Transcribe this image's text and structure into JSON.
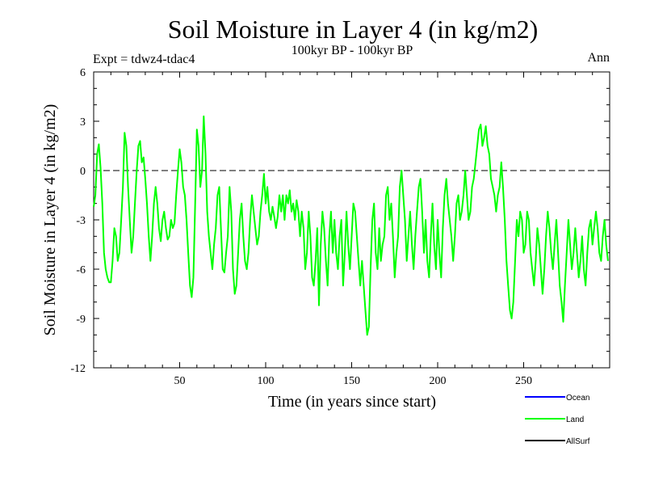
{
  "chart_data": {
    "type": "line",
    "title": "Soil Moisture in Layer 4 (in kg/m2)",
    "subtitle": "100kyr BP - 100kyr BP",
    "experiment_label": "Expt = tdwz4-tdac4",
    "season_label": "Ann",
    "xlabel": "Time (in years since start)",
    "ylabel": "Soil Moisture in Layer 4 (in kg/m2)",
    "xlim": [
      0,
      300
    ],
    "ylim": [
      -12,
      6
    ],
    "x_ticks": [
      50,
      100,
      150,
      200,
      250
    ],
    "y_ticks": [
      6,
      3,
      0,
      -3,
      -6,
      -9,
      -12
    ],
    "zero_line": true,
    "grid": false,
    "legend_position": "bottom-right",
    "legend": [
      {
        "name": "Ocean",
        "color": "#0000ff"
      },
      {
        "name": "Land",
        "color": "#00ff00"
      },
      {
        "name": "AllSurf",
        "color": "#000000"
      }
    ],
    "series": [
      {
        "name": "Land",
        "color": "#00ff00",
        "x_start": 0,
        "x_step": 1,
        "values": [
          -2.2,
          -1.5,
          1.0,
          1.6,
          0.2,
          -2.0,
          -5.0,
          -6.0,
          -6.5,
          -6.8,
          -6.8,
          -5.5,
          -3.5,
          -4.0,
          -5.5,
          -5.0,
          -3.0,
          -1.0,
          2.3,
          1.5,
          -1.0,
          -3.0,
          -5.0,
          -4.0,
          -2.0,
          0.0,
          1.5,
          1.8,
          0.5,
          0.8,
          -0.5,
          -2.0,
          -4.0,
          -5.5,
          -4.0,
          -2.0,
          -1.0,
          -2.0,
          -3.5,
          -4.3,
          -3.0,
          -2.5,
          -3.5,
          -4.2,
          -4.0,
          -3.0,
          -3.5,
          -3.2,
          -1.5,
          0.0,
          1.3,
          0.5,
          -1.0,
          -1.5,
          -3.0,
          -5.0,
          -7.0,
          -7.7,
          -6.5,
          -2.0,
          2.5,
          1.5,
          -1.0,
          0.0,
          3.3,
          1.0,
          -2.5,
          -4.0,
          -5.0,
          -6.0,
          -4.5,
          -3.5,
          -1.5,
          -1.0,
          -3.5,
          -6.0,
          -6.2,
          -5.0,
          -4.0,
          -1.0,
          -2.5,
          -6.0,
          -7.5,
          -7.0,
          -5.0,
          -3.0,
          -2.0,
          -4.0,
          -5.5,
          -6.0,
          -5.0,
          -3.0,
          -1.5,
          -2.5,
          -3.5,
          -4.5,
          -4.0,
          -2.5,
          -1.5,
          -0.2,
          -2.0,
          -1.0,
          -2.5,
          -3.0,
          -2.2,
          -2.8,
          -3.5,
          -2.8,
          -1.5,
          -2.5,
          -1.5,
          -3.0,
          -1.5,
          -2.0,
          -1.2,
          -2.5,
          -2.0,
          -3.0,
          -1.8,
          -2.5,
          -4.0,
          -2.5,
          -3.5,
          -6.0,
          -5.0,
          -2.5,
          -4.0,
          -6.5,
          -7.0,
          -5.5,
          -3.5,
          -8.2,
          -4.5,
          -2.5,
          -3.5,
          -5.5,
          -7.0,
          -4.0,
          -2.5,
          -5.0,
          -3.0,
          -5.0,
          -6.0,
          -4.0,
          -3.0,
          -7.0,
          -5.0,
          -2.5,
          -4.5,
          -6.0,
          -4.0,
          -2.0,
          -2.5,
          -4.0,
          -5.5,
          -7.0,
          -5.5,
          -7.0,
          -8.5,
          -10.0,
          -9.5,
          -6.0,
          -3.0,
          -2.0,
          -5.0,
          -6.0,
          -3.5,
          -5.5,
          -4.5,
          -4.0,
          -1.5,
          -1.0,
          -3.0,
          -2.0,
          -4.0,
          -6.5,
          -5.0,
          -4.0,
          -1.0,
          0.0,
          -1.5,
          -3.0,
          -5.5,
          -4.0,
          -2.5,
          -4.5,
          -6.0,
          -4.0,
          -2.5,
          -1.0,
          -0.5,
          -2.5,
          -5.0,
          -3.0,
          -5.5,
          -6.5,
          -4.0,
          -2.0,
          -4.5,
          -6.0,
          -3.0,
          -5.0,
          -6.5,
          -3.5,
          -1.5,
          -0.5,
          -2.0,
          -3.0,
          -4.0,
          -5.5,
          -4.0,
          -2.0,
          -1.5,
          -3.0,
          -2.5,
          -1.5,
          0.0,
          -1.5,
          -3.0,
          -2.5,
          -1.0,
          -0.5,
          0.5,
          1.5,
          2.5,
          2.8,
          1.5,
          2.0,
          2.7,
          1.5,
          1.0,
          -0.5,
          -1.0,
          -1.5,
          -2.5,
          -1.5,
          -1.0,
          0.5,
          -1.0,
          -3.0,
          -5.5,
          -7.0,
          -8.5,
          -9.0,
          -8.0,
          -5.5,
          -3.0,
          -4.0,
          -2.5,
          -3.0,
          -5.0,
          -4.5,
          -2.5,
          -3.0,
          -5.0,
          -6.0,
          -7.0,
          -5.5,
          -3.5,
          -4.5,
          -6.0,
          -7.5,
          -6.0,
          -4.0,
          -2.5,
          -3.5,
          -5.0,
          -6.0,
          -4.5,
          -3.0,
          -5.0,
          -7.0,
          -8.0,
          -9.2,
          -7.0,
          -5.0,
          -3.0,
          -4.5,
          -6.0,
          -5.0,
          -3.5,
          -5.0,
          -6.5,
          -5.5,
          -4.0,
          -6.0,
          -7.0,
          -5.0,
          -3.5,
          -3.0,
          -4.5,
          -3.5,
          -2.5,
          -3.5,
          -5.0,
          -5.5,
          -4.0,
          -3.0,
          -4.5,
          -5.5
        ],
        "note": ""
      }
    ]
  }
}
